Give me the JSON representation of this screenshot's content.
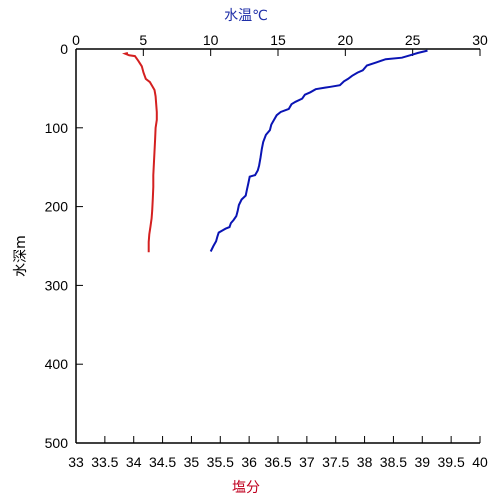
{
  "chart_data": {
    "type": "line",
    "x_top": {
      "label": "水温℃",
      "color": "#1f2fa8",
      "range": [
        0,
        30
      ],
      "ticks": [
        "0",
        "5",
        "10",
        "15",
        "20",
        "25",
        "30"
      ]
    },
    "x_bottom": {
      "label": "塩分",
      "color": "#c0001f",
      "range": [
        33,
        40
      ],
      "ticks": [
        "33",
        "33.5",
        "34",
        "34.5",
        "35",
        "35.5",
        "36",
        "36.5",
        "37",
        "37.5",
        "38",
        "38.5",
        "39",
        "39.5",
        "40"
      ]
    },
    "y": {
      "label": "水深m",
      "range": [
        0,
        500
      ],
      "inverted": true,
      "ticks": [
        "0",
        "100",
        "200",
        "300",
        "400",
        "500"
      ]
    },
    "grid": false,
    "series": [
      {
        "axis": "top",
        "color": "#0a14b4",
        "points": [
          [
            26.1,
            2
          ],
          [
            25.4,
            5
          ],
          [
            24.8,
            8
          ],
          [
            24.2,
            11
          ],
          [
            23.0,
            13
          ],
          [
            22.3,
            17
          ],
          [
            21.6,
            21
          ],
          [
            21.3,
            27
          ],
          [
            20.9,
            30
          ],
          [
            20.5,
            34
          ],
          [
            20.2,
            38
          ],
          [
            19.9,
            41
          ],
          [
            19.6,
            46
          ],
          [
            18.9,
            48
          ],
          [
            18.5,
            49
          ],
          [
            17.8,
            51
          ],
          [
            17.4,
            55
          ],
          [
            17.0,
            58
          ],
          [
            16.8,
            63
          ],
          [
            16.3,
            67
          ],
          [
            16.0,
            70
          ],
          [
            15.8,
            76
          ],
          [
            15.2,
            80
          ],
          [
            14.9,
            84
          ],
          [
            14.7,
            90
          ],
          [
            14.5,
            96
          ],
          [
            14.4,
            103
          ],
          [
            14.1,
            109
          ],
          [
            13.9,
            118
          ],
          [
            13.8,
            127
          ],
          [
            13.7,
            138
          ],
          [
            13.6,
            148
          ],
          [
            13.5,
            154
          ],
          [
            13.3,
            160
          ],
          [
            12.9,
            162
          ],
          [
            12.8,
            170
          ],
          [
            12.7,
            178
          ],
          [
            12.6,
            186
          ],
          [
            12.3,
            191
          ],
          [
            12.1,
            198
          ],
          [
            12.0,
            206
          ],
          [
            11.9,
            212
          ],
          [
            11.7,
            217
          ],
          [
            11.5,
            221
          ],
          [
            11.4,
            226
          ],
          [
            11.1,
            228
          ],
          [
            10.9,
            230
          ],
          [
            10.6,
            233
          ],
          [
            10.5,
            238
          ],
          [
            10.4,
            244
          ],
          [
            10.2,
            250
          ],
          [
            10.0,
            257
          ]
        ]
      },
      {
        "axis": "bottom",
        "color": "#d42020",
        "points": [
          [
            33.9,
            5
          ],
          [
            33.85,
            6
          ],
          [
            33.92,
            8
          ],
          [
            34.02,
            9
          ],
          [
            34.08,
            15
          ],
          [
            34.14,
            22
          ],
          [
            34.17,
            30
          ],
          [
            34.21,
            38
          ],
          [
            34.28,
            42
          ],
          [
            34.32,
            47
          ],
          [
            34.36,
            52
          ],
          [
            34.38,
            60
          ],
          [
            34.39,
            70
          ],
          [
            34.4,
            80
          ],
          [
            34.4,
            90
          ],
          [
            34.38,
            100
          ],
          [
            34.37,
            115
          ],
          [
            34.36,
            130
          ],
          [
            34.35,
            145
          ],
          [
            34.34,
            160
          ],
          [
            34.34,
            175
          ],
          [
            34.33,
            190
          ],
          [
            34.32,
            205
          ],
          [
            34.31,
            215
          ],
          [
            34.29,
            225
          ],
          [
            34.27,
            235
          ],
          [
            34.26,
            245
          ],
          [
            34.26,
            258
          ]
        ]
      }
    ]
  }
}
